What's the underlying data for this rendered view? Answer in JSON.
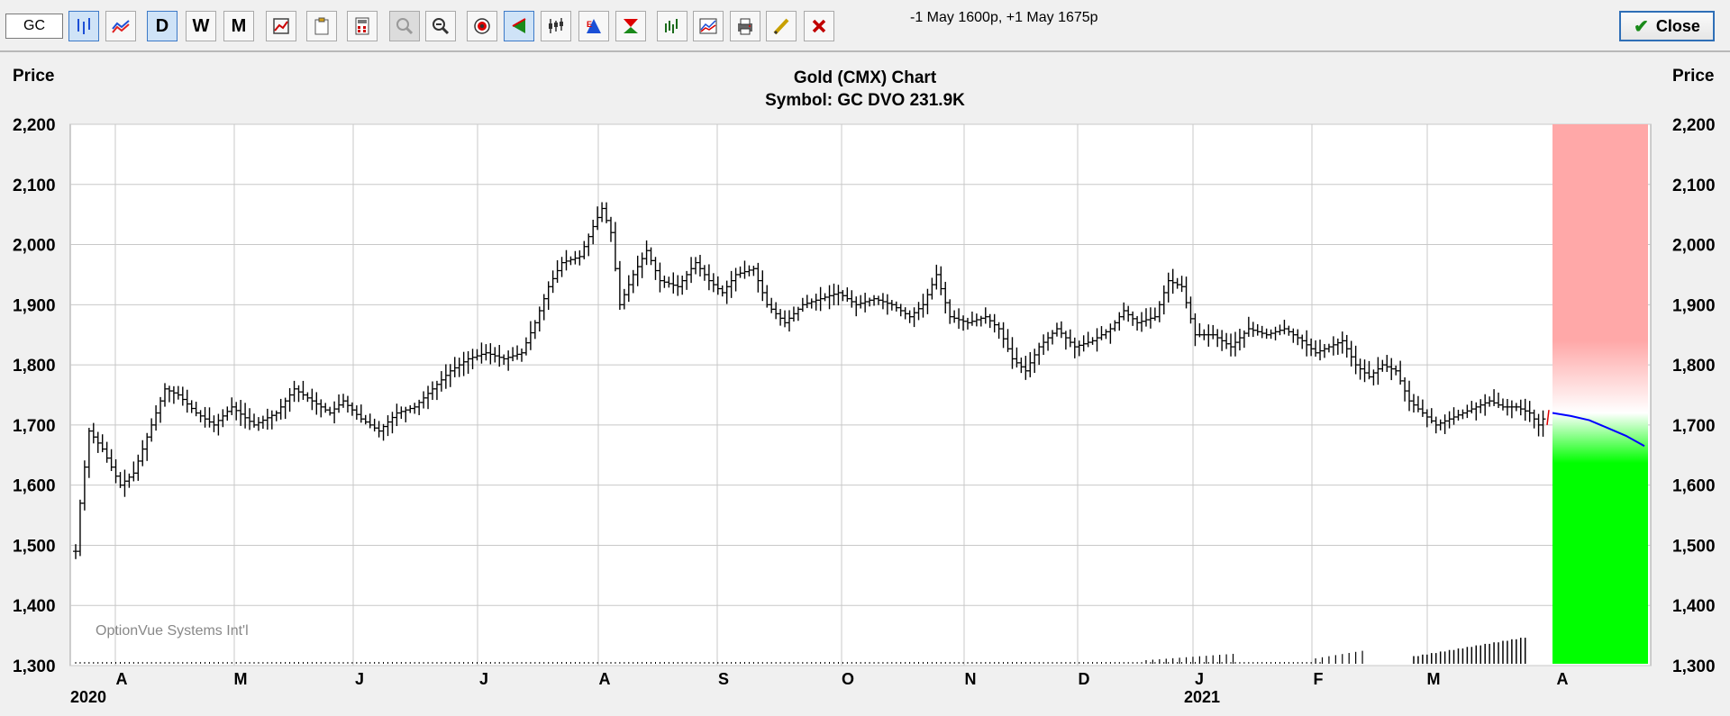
{
  "toolbar": {
    "symbol_value": "GC",
    "note": "-1 May 1600p, +1 May 1675p",
    "close_label": "Close",
    "period_buttons": [
      "D",
      "W",
      "M"
    ]
  },
  "chart_data": {
    "type": "ohlc",
    "title": "Gold (CMX) Chart",
    "subtitle": "Symbol: GC  DVO 231.9K",
    "ylabel_left": "Price",
    "ylabel_right": "Price",
    "ylim": [
      1300,
      2200
    ],
    "yticks": [
      "1,300",
      "1,400",
      "1,500",
      "1,600",
      "1,700",
      "1,800",
      "1,900",
      "2,000",
      "2,100",
      "2,200"
    ],
    "month_labels": [
      "A",
      "M",
      "J",
      "J",
      "A",
      "S",
      "O",
      "N",
      "D",
      "J",
      "F",
      "M",
      "A"
    ],
    "year_labels": [
      {
        "label": "2020",
        "month_index": 0
      },
      {
        "label": "2021",
        "month_index": 9
      }
    ],
    "watermark": "OptionVue Systems Int'l",
    "colors": {
      "bars": "#000000",
      "forecast_line": "#0000ff",
      "upper_zone": "#ffa8a8",
      "lower_zone": "#00ff00",
      "grid": "#c8c8c8"
    },
    "price_path": [
      {
        "d": 0,
        "p": 1490
      },
      {
        "d": 2,
        "p": 1570
      },
      {
        "d": 6,
        "p": 1690
      },
      {
        "d": 12,
        "p": 1660
      },
      {
        "d": 16,
        "p": 1630
      },
      {
        "d": 20,
        "p": 1600
      },
      {
        "d": 26,
        "p": 1620
      },
      {
        "d": 32,
        "p": 1680
      },
      {
        "d": 40,
        "p": 1760
      },
      {
        "d": 46,
        "p": 1750
      },
      {
        "d": 54,
        "p": 1720
      },
      {
        "d": 62,
        "p": 1700
      },
      {
        "d": 70,
        "p": 1730
      },
      {
        "d": 80,
        "p": 1700
      },
      {
        "d": 90,
        "p": 1720
      },
      {
        "d": 98,
        "p": 1760
      },
      {
        "d": 106,
        "p": 1740
      },
      {
        "d": 114,
        "p": 1720
      },
      {
        "d": 120,
        "p": 1740
      },
      {
        "d": 128,
        "p": 1710
      },
      {
        "d": 136,
        "p": 1690
      },
      {
        "d": 144,
        "p": 1720
      },
      {
        "d": 152,
        "p": 1730
      },
      {
        "d": 160,
        "p": 1760
      },
      {
        "d": 168,
        "p": 1790
      },
      {
        "d": 176,
        "p": 1810
      },
      {
        "d": 184,
        "p": 1820
      },
      {
        "d": 192,
        "p": 1810
      },
      {
        "d": 200,
        "p": 1820
      },
      {
        "d": 206,
        "p": 1870
      },
      {
        "d": 212,
        "p": 1930
      },
      {
        "d": 218,
        "p": 1970
      },
      {
        "d": 226,
        "p": 1980
      },
      {
        "d": 232,
        "p": 2030
      },
      {
        "d": 236,
        "p": 2060
      },
      {
        "d": 240,
        "p": 2020
      },
      {
        "d": 244,
        "p": 1900
      },
      {
        "d": 250,
        "p": 1950
      },
      {
        "d": 256,
        "p": 1990
      },
      {
        "d": 262,
        "p": 1940
      },
      {
        "d": 270,
        "p": 1930
      },
      {
        "d": 278,
        "p": 1970
      },
      {
        "d": 284,
        "p": 1940
      },
      {
        "d": 290,
        "p": 1920
      },
      {
        "d": 296,
        "p": 1950
      },
      {
        "d": 304,
        "p": 1960
      },
      {
        "d": 310,
        "p": 1900
      },
      {
        "d": 318,
        "p": 1870
      },
      {
        "d": 326,
        "p": 1900
      },
      {
        "d": 334,
        "p": 1910
      },
      {
        "d": 342,
        "p": 1920
      },
      {
        "d": 350,
        "p": 1900
      },
      {
        "d": 358,
        "p": 1910
      },
      {
        "d": 366,
        "p": 1900
      },
      {
        "d": 374,
        "p": 1880
      },
      {
        "d": 380,
        "p": 1900
      },
      {
        "d": 386,
        "p": 1950
      },
      {
        "d": 392,
        "p": 1880
      },
      {
        "d": 400,
        "p": 1870
      },
      {
        "d": 408,
        "p": 1880
      },
      {
        "d": 414,
        "p": 1860
      },
      {
        "d": 420,
        "p": 1810
      },
      {
        "d": 426,
        "p": 1790
      },
      {
        "d": 432,
        "p": 1830
      },
      {
        "d": 440,
        "p": 1860
      },
      {
        "d": 448,
        "p": 1830
      },
      {
        "d": 456,
        "p": 1840
      },
      {
        "d": 464,
        "p": 1860
      },
      {
        "d": 470,
        "p": 1890
      },
      {
        "d": 476,
        "p": 1870
      },
      {
        "d": 484,
        "p": 1880
      },
      {
        "d": 490,
        "p": 1940
      },
      {
        "d": 496,
        "p": 1930
      },
      {
        "d": 502,
        "p": 1850
      },
      {
        "d": 510,
        "p": 1850
      },
      {
        "d": 518,
        "p": 1830
      },
      {
        "d": 526,
        "p": 1860
      },
      {
        "d": 534,
        "p": 1850
      },
      {
        "d": 542,
        "p": 1860
      },
      {
        "d": 550,
        "p": 1840
      },
      {
        "d": 556,
        "p": 1820
      },
      {
        "d": 562,
        "p": 1830
      },
      {
        "d": 568,
        "p": 1840
      },
      {
        "d": 574,
        "p": 1800
      },
      {
        "d": 580,
        "p": 1780
      },
      {
        "d": 586,
        "p": 1800
      },
      {
        "d": 592,
        "p": 1790
      },
      {
        "d": 598,
        "p": 1740
      },
      {
        "d": 604,
        "p": 1720
      },
      {
        "d": 610,
        "p": 1700
      },
      {
        "d": 616,
        "p": 1710
      },
      {
        "d": 622,
        "p": 1720
      },
      {
        "d": 628,
        "p": 1730
      },
      {
        "d": 634,
        "p": 1740
      },
      {
        "d": 640,
        "p": 1730
      },
      {
        "d": 646,
        "p": 1730
      },
      {
        "d": 652,
        "p": 1720
      },
      {
        "d": 656,
        "p": 1700
      },
      {
        "d": 659,
        "p": 1715
      }
    ],
    "volume_bars": [
      {
        "d": 600,
        "v": 0.05
      },
      {
        "d": 604,
        "v": 0.06
      },
      {
        "d": 608,
        "v": 0.07
      },
      {
        "d": 612,
        "v": 0.08
      },
      {
        "d": 616,
        "v": 0.09
      },
      {
        "d": 620,
        "v": 0.1
      },
      {
        "d": 624,
        "v": 0.11
      },
      {
        "d": 628,
        "v": 0.12
      },
      {
        "d": 632,
        "v": 0.13
      },
      {
        "d": 636,
        "v": 0.14
      },
      {
        "d": 640,
        "v": 0.15
      },
      {
        "d": 644,
        "v": 0.16
      },
      {
        "d": 648,
        "v": 0.17
      }
    ],
    "forecast": [
      {
        "t": 0,
        "p": 1720
      },
      {
        "t": 0.2,
        "p": 1715
      },
      {
        "t": 0.4,
        "p": 1708
      },
      {
        "t": 0.6,
        "p": 1695
      },
      {
        "t": 0.8,
        "p": 1682
      },
      {
        "t": 1,
        "p": 1665
      }
    ]
  }
}
